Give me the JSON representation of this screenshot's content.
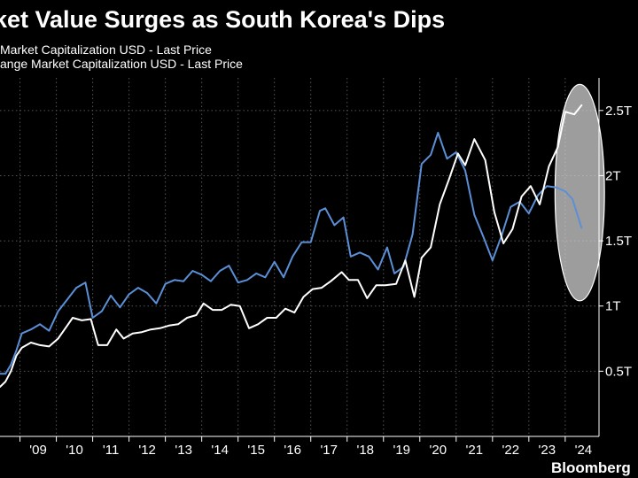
{
  "chart_data": {
    "type": "line",
    "title": "ket Value Surges as South Korea's Dips",
    "xlabel": "",
    "ylabel": "",
    "ylim": [
      0,
      2.75
    ],
    "grid": true,
    "legend_position": "top-left",
    "colors": {
      "background": "#000000",
      "white_series": "#ffffff",
      "blue_series": "#5b8fd6",
      "grid": "#555555",
      "highlight_fill": "#d9d9d9"
    },
    "y_ticks": [
      {
        "value": 0.5,
        "label": "0.5T"
      },
      {
        "value": 1.0,
        "label": "1T"
      },
      {
        "value": 1.5,
        "label": "1.5T"
      },
      {
        "value": 2.0,
        "label": "2T"
      },
      {
        "value": 2.5,
        "label": "2.5T"
      }
    ],
    "x_ticks": [
      {
        "value": 2009,
        "label": "'09"
      },
      {
        "value": 2010,
        "label": "'10"
      },
      {
        "value": 2011,
        "label": "'11"
      },
      {
        "value": 2012,
        "label": "'12"
      },
      {
        "value": 2013,
        "label": "'13"
      },
      {
        "value": 2014,
        "label": "'14"
      },
      {
        "value": 2015,
        "label": "'15"
      },
      {
        "value": 2016,
        "label": "'16"
      },
      {
        "value": 2017,
        "label": "'17"
      },
      {
        "value": 2018,
        "label": "'18"
      },
      {
        "value": 2019,
        "label": "'19"
      },
      {
        "value": 2020,
        "label": "'20"
      },
      {
        "value": 2021,
        "label": "'21"
      },
      {
        "value": 2022,
        "label": "'22"
      },
      {
        "value": 2023,
        "label": "'23"
      },
      {
        "value": 2024,
        "label": "'24"
      }
    ],
    "xlim": [
      2008.45,
      2024.93
    ],
    "highlight": {
      "x_center": 2024.4,
      "y_center": 1.87,
      "x_radius": 0.68,
      "y_radius": 0.83
    },
    "series": [
      {
        "name": "Market Capitalization USD - Last Price",
        "legend_label": "Market Capitalization USD - Last Price",
        "color": "#ffffff",
        "points": [
          [
            2008.45,
            0.38
          ],
          [
            2008.6,
            0.42
          ],
          [
            2008.75,
            0.5
          ],
          [
            2008.9,
            0.62
          ],
          [
            2009.05,
            0.68
          ],
          [
            2009.3,
            0.72
          ],
          [
            2009.55,
            0.7
          ],
          [
            2009.8,
            0.69
          ],
          [
            2010.05,
            0.75
          ],
          [
            2010.3,
            0.85
          ],
          [
            2010.45,
            0.91
          ],
          [
            2010.7,
            0.89
          ],
          [
            2010.95,
            0.9
          ],
          [
            2011.15,
            0.7
          ],
          [
            2011.4,
            0.7
          ],
          [
            2011.65,
            0.82
          ],
          [
            2011.85,
            0.75
          ],
          [
            2012.1,
            0.79
          ],
          [
            2012.35,
            0.8
          ],
          [
            2012.6,
            0.82
          ],
          [
            2012.85,
            0.83
          ],
          [
            2013.1,
            0.85
          ],
          [
            2013.35,
            0.86
          ],
          [
            2013.6,
            0.91
          ],
          [
            2013.85,
            0.93
          ],
          [
            2014.05,
            1.02
          ],
          [
            2014.3,
            0.97
          ],
          [
            2014.55,
            0.97
          ],
          [
            2014.8,
            1.01
          ],
          [
            2015.05,
            1.0
          ],
          [
            2015.3,
            0.83
          ],
          [
            2015.55,
            0.86
          ],
          [
            2015.8,
            0.91
          ],
          [
            2016.05,
            0.91
          ],
          [
            2016.3,
            0.98
          ],
          [
            2016.55,
            0.95
          ],
          [
            2016.8,
            1.07
          ],
          [
            2017.05,
            1.13
          ],
          [
            2017.3,
            1.14
          ],
          [
            2017.55,
            1.19
          ],
          [
            2017.85,
            1.26
          ],
          [
            2018.05,
            1.2
          ],
          [
            2018.3,
            1.2
          ],
          [
            2018.55,
            1.06
          ],
          [
            2018.8,
            1.16
          ],
          [
            2019.05,
            1.16
          ],
          [
            2019.35,
            1.17
          ],
          [
            2019.6,
            1.35
          ],
          [
            2019.85,
            1.07
          ],
          [
            2020.05,
            1.37
          ],
          [
            2020.3,
            1.45
          ],
          [
            2020.55,
            1.78
          ],
          [
            2020.8,
            1.97
          ],
          [
            2021.05,
            2.17
          ],
          [
            2021.25,
            2.08
          ],
          [
            2021.5,
            2.28
          ],
          [
            2021.8,
            2.12
          ],
          [
            2022.05,
            1.72
          ],
          [
            2022.3,
            1.48
          ],
          [
            2022.55,
            1.59
          ],
          [
            2022.8,
            1.84
          ],
          [
            2023.05,
            1.92
          ],
          [
            2023.3,
            1.78
          ],
          [
            2023.55,
            2.07
          ],
          [
            2023.8,
            2.22
          ],
          [
            2024.0,
            2.49
          ],
          [
            2024.25,
            2.47
          ],
          [
            2024.45,
            2.54
          ]
        ]
      },
      {
        "name": "ange Market Capitalization USD - Last Price",
        "legend_label": "ange Market Capitalization USD - Last Price",
        "color": "#5b8fd6",
        "points": [
          [
            2008.45,
            0.48
          ],
          [
            2008.6,
            0.48
          ],
          [
            2008.75,
            0.55
          ],
          [
            2008.9,
            0.66
          ],
          [
            2009.05,
            0.79
          ],
          [
            2009.3,
            0.82
          ],
          [
            2009.55,
            0.86
          ],
          [
            2009.8,
            0.81
          ],
          [
            2010.05,
            0.96
          ],
          [
            2010.3,
            1.05
          ],
          [
            2010.55,
            1.14
          ],
          [
            2010.8,
            1.18
          ],
          [
            2011.0,
            0.91
          ],
          [
            2011.25,
            0.96
          ],
          [
            2011.5,
            1.08
          ],
          [
            2011.75,
            0.99
          ],
          [
            2012.0,
            1.09
          ],
          [
            2012.25,
            1.14
          ],
          [
            2012.5,
            1.1
          ],
          [
            2012.75,
            1.02
          ],
          [
            2013.0,
            1.17
          ],
          [
            2013.25,
            1.2
          ],
          [
            2013.5,
            1.19
          ],
          [
            2013.75,
            1.27
          ],
          [
            2014.0,
            1.24
          ],
          [
            2014.25,
            1.19
          ],
          [
            2014.5,
            1.27
          ],
          [
            2014.75,
            1.31
          ],
          [
            2015.0,
            1.18
          ],
          [
            2015.25,
            1.2
          ],
          [
            2015.5,
            1.25
          ],
          [
            2015.75,
            1.22
          ],
          [
            2016.0,
            1.34
          ],
          [
            2016.25,
            1.22
          ],
          [
            2016.5,
            1.38
          ],
          [
            2016.75,
            1.49
          ],
          [
            2017.0,
            1.49
          ],
          [
            2017.25,
            1.73
          ],
          [
            2017.4,
            1.75
          ],
          [
            2017.65,
            1.62
          ],
          [
            2017.9,
            1.68
          ],
          [
            2018.1,
            1.38
          ],
          [
            2018.35,
            1.41
          ],
          [
            2018.6,
            1.38
          ],
          [
            2018.85,
            1.28
          ],
          [
            2019.1,
            1.45
          ],
          [
            2019.3,
            1.25
          ],
          [
            2019.55,
            1.3
          ],
          [
            2019.8,
            1.55
          ],
          [
            2020.05,
            2.09
          ],
          [
            2020.3,
            2.16
          ],
          [
            2020.5,
            2.33
          ],
          [
            2020.75,
            2.13
          ],
          [
            2021.0,
            2.18
          ],
          [
            2021.25,
            2.04
          ],
          [
            2021.5,
            1.7
          ],
          [
            2021.75,
            1.53
          ],
          [
            2022.0,
            1.35
          ],
          [
            2022.25,
            1.54
          ],
          [
            2022.5,
            1.76
          ],
          [
            2022.75,
            1.8
          ],
          [
            2023.0,
            1.71
          ],
          [
            2023.25,
            1.85
          ],
          [
            2023.5,
            1.92
          ],
          [
            2023.75,
            1.91
          ],
          [
            2024.0,
            1.88
          ],
          [
            2024.2,
            1.82
          ],
          [
            2024.45,
            1.6
          ]
        ]
      }
    ]
  },
  "source": "Bloomberg"
}
